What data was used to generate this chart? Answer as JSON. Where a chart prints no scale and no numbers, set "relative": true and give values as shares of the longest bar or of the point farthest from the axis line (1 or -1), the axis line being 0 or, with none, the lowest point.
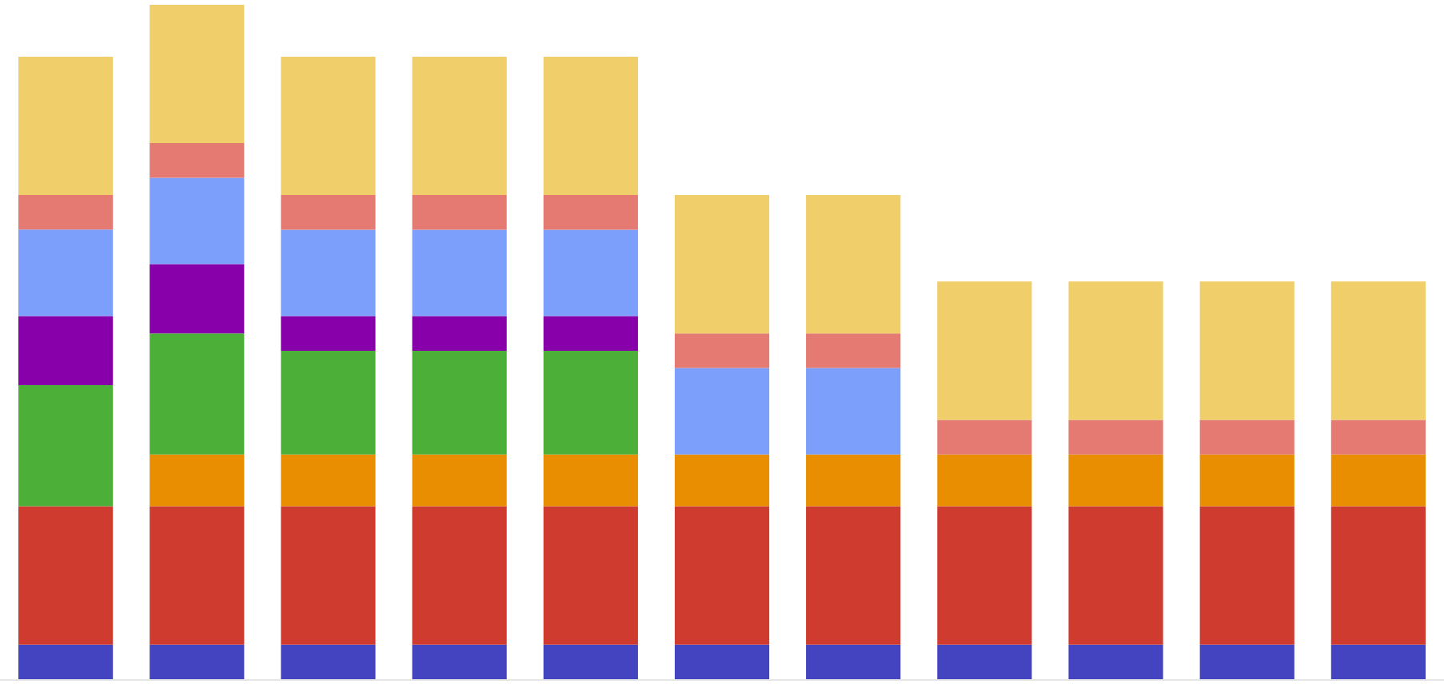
{
  "chart_data": {
    "type": "bar",
    "stacked": true,
    "relative": true,
    "legend": false,
    "categories": [
      null,
      null,
      null,
      null,
      null,
      null,
      null,
      null,
      null,
      null,
      null
    ],
    "series": [
      {
        "color": "#4444c0",
        "values": [
          0.0513,
          0.0513,
          0.0513,
          0.0513,
          0.0513,
          0.0513,
          0.0513,
          0.0513,
          0.0513,
          0.0513,
          0.0513
        ]
      },
      {
        "color": "#cf3b2f",
        "values": [
          0.2051,
          0.2051,
          0.2051,
          0.2051,
          0.2051,
          0.2051,
          0.2051,
          0.2051,
          0.2051,
          0.2051,
          0.2051
        ]
      },
      {
        "color": "#e88e00",
        "values": [
          null,
          0.0769,
          0.0769,
          0.0769,
          0.0769,
          0.0769,
          0.0769,
          0.0769,
          0.0769,
          0.0769,
          0.0769
        ]
      },
      {
        "color": "#4baf38",
        "values": [
          0.1795,
          0.1795,
          0.1538,
          0.1538,
          0.1538,
          null,
          null,
          null,
          null,
          null,
          null
        ]
      },
      {
        "color": "#8800aa",
        "values": [
          0.1026,
          0.1026,
          0.0513,
          0.0513,
          0.0513,
          null,
          null,
          null,
          null,
          null,
          null
        ]
      },
      {
        "color": "#7b9ffa",
        "values": [
          0.1282,
          0.1282,
          0.1282,
          0.1282,
          0.1282,
          0.1282,
          0.1282,
          null,
          null,
          null,
          null
        ]
      },
      {
        "color": "#e57a72",
        "values": [
          0.0513,
          0.0513,
          0.0513,
          0.0513,
          0.0513,
          0.0513,
          0.0513,
          0.0513,
          0.0513,
          0.0513,
          0.0513
        ]
      },
      {
        "color": "#f0ce6a",
        "values": [
          0.2051,
          0.2051,
          0.2051,
          0.2051,
          0.2051,
          0.2051,
          0.2051,
          0.2051,
          0.2051,
          0.2051,
          0.2051
        ]
      }
    ]
  }
}
